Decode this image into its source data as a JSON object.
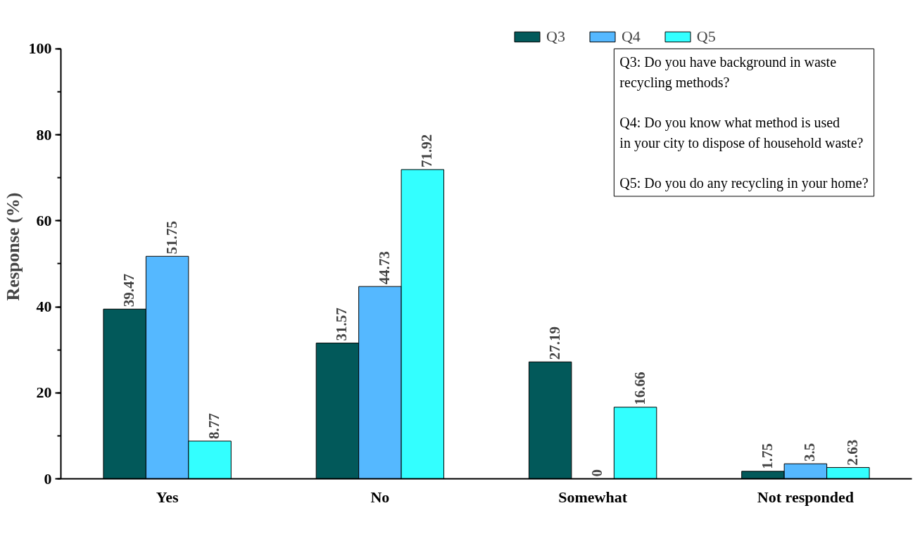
{
  "chart_data": {
    "type": "bar",
    "ylabel": "Response (%)",
    "categories": [
      "Yes",
      "No",
      "Somewhat",
      "Not responded"
    ],
    "series": [
      {
        "name": "Q3",
        "color": "#02595a",
        "values": [
          39.47,
          31.57,
          27.19,
          1.75
        ]
      },
      {
        "name": "Q4",
        "color": "#55b8ff",
        "values": [
          51.75,
          44.73,
          0,
          3.5
        ]
      },
      {
        "name": "Q5",
        "color": "#33ffff",
        "values": [
          8.77,
          71.92,
          16.66,
          2.63
        ]
      }
    ],
    "ylim": [
      0,
      100
    ],
    "yticks": [
      0,
      20,
      40,
      60,
      80,
      100
    ],
    "grid": false,
    "legend": "top",
    "data_labels": true,
    "annotations": [
      "Q3: Do you have background in waste\nrecycling methods?\n\nQ4: Do you know what method is used\nin your city to dispose of household waste?\n\nQ5: Do you do any recycling in your home?"
    ]
  }
}
